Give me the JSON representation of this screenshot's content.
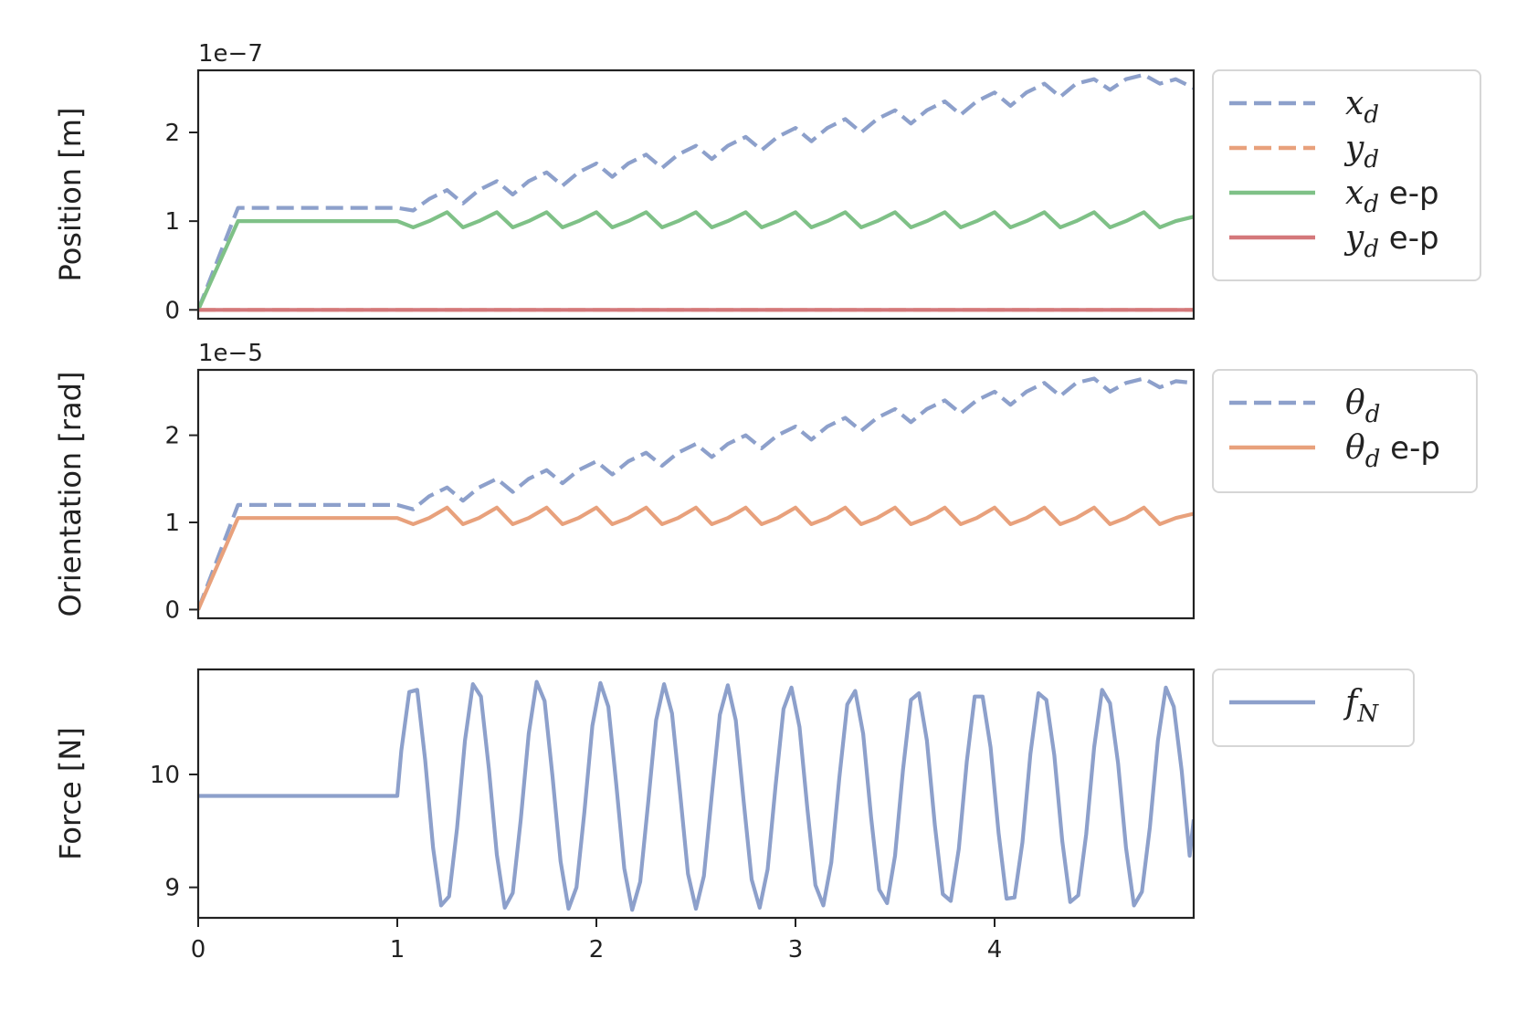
{
  "chart_data": [
    {
      "type": "line",
      "ylabel": "Position [m]",
      "offset_text": "1e−7",
      "scale": 1e-07,
      "xlim": [
        0,
        5
      ],
      "ylim": [
        -0.1,
        2.7
      ],
      "yticks": [
        0,
        1,
        2
      ],
      "ytick_labels": [
        "0",
        "1",
        "2"
      ],
      "legend_position": "outside-right",
      "series": [
        {
          "name": "x_d",
          "style": "dashed",
          "color": "#8da0cb",
          "x": [
            0,
            0.2,
            1.0,
            1.08,
            1.16,
            1.25,
            1.33,
            1.41,
            1.5,
            1.58,
            1.66,
            1.75,
            1.83,
            1.91,
            2.0,
            2.08,
            2.16,
            2.25,
            2.33,
            2.41,
            2.5,
            2.58,
            2.66,
            2.75,
            2.83,
            2.91,
            3.0,
            3.08,
            3.16,
            3.25,
            3.33,
            3.41,
            3.5,
            3.58,
            3.66,
            3.75,
            3.83,
            3.91,
            4.0,
            4.08,
            4.16,
            4.25,
            4.33,
            4.41,
            4.5,
            4.58,
            4.66,
            4.75,
            4.83,
            4.91,
            5.0
          ],
          "y": [
            0,
            1.15,
            1.15,
            1.12,
            1.25,
            1.35,
            1.2,
            1.35,
            1.45,
            1.3,
            1.45,
            1.55,
            1.4,
            1.55,
            1.65,
            1.5,
            1.65,
            1.75,
            1.6,
            1.75,
            1.85,
            1.7,
            1.85,
            1.95,
            1.8,
            1.95,
            2.05,
            1.9,
            2.05,
            2.15,
            2.0,
            2.15,
            2.25,
            2.1,
            2.25,
            2.35,
            2.2,
            2.35,
            2.45,
            2.3,
            2.45,
            2.55,
            2.4,
            2.55,
            2.6,
            2.48,
            2.6,
            2.65,
            2.55,
            2.6,
            2.5
          ]
        },
        {
          "name": "y_d",
          "style": "dashed",
          "color": "#e8a17c",
          "x": [
            0,
            5
          ],
          "y": [
            0,
            0
          ]
        },
        {
          "name": "x_d e-p",
          "style": "solid",
          "color": "#7fc187",
          "x": [
            0,
            0.2,
            1.0,
            1.08,
            1.16,
            1.25,
            1.33,
            1.41,
            1.5,
            1.58,
            1.66,
            1.75,
            1.83,
            1.91,
            2.0,
            2.08,
            2.16,
            2.25,
            2.33,
            2.41,
            2.5,
            2.58,
            2.66,
            2.75,
            2.83,
            2.91,
            3.0,
            3.08,
            3.16,
            3.25,
            3.33,
            3.41,
            3.5,
            3.58,
            3.66,
            3.75,
            3.83,
            3.91,
            4.0,
            4.08,
            4.16,
            4.25,
            4.33,
            4.41,
            4.5,
            4.58,
            4.66,
            4.75,
            4.83,
            4.91,
            5.0
          ],
          "y": [
            0,
            1.0,
            1.0,
            0.93,
            1.0,
            1.1,
            0.93,
            1.0,
            1.1,
            0.93,
            1.0,
            1.1,
            0.93,
            1.0,
            1.1,
            0.93,
            1.0,
            1.1,
            0.93,
            1.0,
            1.1,
            0.93,
            1.0,
            1.1,
            0.93,
            1.0,
            1.1,
            0.93,
            1.0,
            1.1,
            0.93,
            1.0,
            1.1,
            0.93,
            1.0,
            1.1,
            0.93,
            1.0,
            1.1,
            0.93,
            1.0,
            1.1,
            0.93,
            1.0,
            1.1,
            0.93,
            1.0,
            1.1,
            0.93,
            1.0,
            1.05
          ]
        },
        {
          "name": "y_d e-p",
          "style": "solid",
          "color": "#d4787b",
          "x": [
            0,
            5
          ],
          "y": [
            0,
            0
          ]
        }
      ],
      "legend": [
        {
          "series": 0,
          "symbol": "x",
          "suffix": ""
        },
        {
          "series": 1,
          "symbol": "y",
          "suffix": ""
        },
        {
          "series": 2,
          "symbol": "x",
          "suffix": " e-p"
        },
        {
          "series": 3,
          "symbol": "y",
          "suffix": " e-p"
        }
      ]
    },
    {
      "type": "line",
      "ylabel": "Orientation [rad]",
      "offset_text": "1e−5",
      "scale": 1e-05,
      "xlim": [
        0,
        5
      ],
      "ylim": [
        -0.1,
        2.75
      ],
      "yticks": [
        0,
        1,
        2
      ],
      "ytick_labels": [
        "0",
        "1",
        "2"
      ],
      "legend_position": "outside-right",
      "series": [
        {
          "name": "theta_d",
          "style": "dashed",
          "color": "#8da0cb",
          "x": [
            0,
            0.2,
            1.0,
            1.08,
            1.16,
            1.25,
            1.33,
            1.41,
            1.5,
            1.58,
            1.66,
            1.75,
            1.83,
            1.91,
            2.0,
            2.08,
            2.16,
            2.25,
            2.33,
            2.41,
            2.5,
            2.58,
            2.66,
            2.75,
            2.83,
            2.91,
            3.0,
            3.08,
            3.16,
            3.25,
            3.33,
            3.41,
            3.5,
            3.58,
            3.66,
            3.75,
            3.83,
            3.91,
            4.0,
            4.08,
            4.16,
            4.25,
            4.33,
            4.41,
            4.5,
            4.58,
            4.66,
            4.75,
            4.83,
            4.91,
            5.0
          ],
          "y": [
            0,
            1.2,
            1.2,
            1.15,
            1.3,
            1.4,
            1.25,
            1.4,
            1.5,
            1.35,
            1.5,
            1.6,
            1.45,
            1.6,
            1.7,
            1.55,
            1.7,
            1.8,
            1.65,
            1.8,
            1.9,
            1.75,
            1.9,
            2.0,
            1.85,
            2.0,
            2.1,
            1.95,
            2.1,
            2.2,
            2.05,
            2.2,
            2.3,
            2.15,
            2.3,
            2.4,
            2.25,
            2.4,
            2.5,
            2.35,
            2.5,
            2.6,
            2.45,
            2.6,
            2.65,
            2.5,
            2.6,
            2.65,
            2.55,
            2.62,
            2.6
          ]
        },
        {
          "name": "theta_d e-p",
          "style": "solid",
          "color": "#e8a17c",
          "x": [
            0,
            0.2,
            1.0,
            1.08,
            1.16,
            1.25,
            1.33,
            1.41,
            1.5,
            1.58,
            1.66,
            1.75,
            1.83,
            1.91,
            2.0,
            2.08,
            2.16,
            2.25,
            2.33,
            2.41,
            2.5,
            2.58,
            2.66,
            2.75,
            2.83,
            2.91,
            3.0,
            3.08,
            3.16,
            3.25,
            3.33,
            3.41,
            3.5,
            3.58,
            3.66,
            3.75,
            3.83,
            3.91,
            4.0,
            4.08,
            4.16,
            4.25,
            4.33,
            4.41,
            4.5,
            4.58,
            4.66,
            4.75,
            4.83,
            4.91,
            5.0
          ],
          "y": [
            0,
            1.05,
            1.05,
            0.98,
            1.05,
            1.17,
            0.98,
            1.05,
            1.17,
            0.98,
            1.05,
            1.17,
            0.98,
            1.05,
            1.17,
            0.98,
            1.05,
            1.17,
            0.98,
            1.05,
            1.17,
            0.98,
            1.05,
            1.17,
            0.98,
            1.05,
            1.17,
            0.98,
            1.05,
            1.17,
            0.98,
            1.05,
            1.17,
            0.98,
            1.05,
            1.17,
            0.98,
            1.05,
            1.17,
            0.98,
            1.05,
            1.17,
            0.98,
            1.05,
            1.17,
            0.98,
            1.05,
            1.17,
            0.98,
            1.05,
            1.1
          ]
        }
      ],
      "legend": [
        {
          "series": 0,
          "symbol": "θ",
          "suffix": ""
        },
        {
          "series": 1,
          "symbol": "θ",
          "suffix": " e-p"
        }
      ]
    },
    {
      "type": "line",
      "ylabel": "Force [N]",
      "offset_text": "",
      "scale": 1,
      "xlim": [
        0,
        5
      ],
      "ylim": [
        8.73,
        10.93
      ],
      "yticks": [
        9,
        10
      ],
      "ytick_labels": [
        "9",
        "10"
      ],
      "xticks": [
        0,
        1,
        2,
        3,
        4
      ],
      "xtick_labels": [
        "0",
        "1",
        "2",
        "3",
        "4"
      ],
      "legend_position": "outside-right",
      "series": [
        {
          "name": "f_N",
          "style": "solid",
          "color": "#8da0cb",
          "x": [
            0,
            1.0,
            1.02,
            1.06,
            1.1,
            1.14,
            1.18,
            1.22,
            1.26,
            1.3,
            1.34,
            1.38,
            1.42,
            1.46,
            1.5,
            1.54,
            1.58,
            1.62,
            1.66,
            1.7,
            1.74,
            1.78,
            1.82,
            1.86,
            1.9,
            1.94,
            1.98,
            2.02,
            2.06,
            2.1,
            2.14,
            2.18,
            2.22,
            2.26,
            2.3,
            2.34,
            2.38,
            2.42,
            2.46,
            2.5,
            2.54,
            2.58,
            2.62,
            2.66,
            2.7,
            2.74,
            2.78,
            2.82,
            2.86,
            2.9,
            2.94,
            2.98,
            3.02,
            3.06,
            3.1,
            3.14,
            3.18,
            3.22,
            3.26,
            3.3,
            3.34,
            3.38,
            3.42,
            3.46,
            3.5,
            3.54,
            3.58,
            3.62,
            3.66,
            3.7,
            3.74,
            3.78,
            3.82,
            3.86,
            3.9,
            3.94,
            3.98,
            4.02,
            4.06,
            4.1,
            4.14,
            4.18,
            4.22,
            4.26,
            4.3,
            4.34,
            4.38,
            4.42,
            4.46,
            4.5,
            4.54,
            4.58,
            4.62,
            4.66,
            4.7,
            4.74,
            4.78,
            4.82,
            4.86,
            4.9,
            4.94,
            4.98,
            5.0
          ],
          "y": [
            9.81,
            9.81,
            10.21,
            10.73,
            10.75,
            10.13,
            9.35,
            8.84,
            8.92,
            9.52,
            10.3,
            10.8,
            10.69,
            10.05,
            9.29,
            8.82,
            8.95,
            9.6,
            10.36,
            10.82,
            10.65,
            9.98,
            9.23,
            8.81,
            9.0,
            9.67,
            10.43,
            10.81,
            10.6,
            9.91,
            9.17,
            8.8,
            9.05,
            9.75,
            10.48,
            10.8,
            10.54,
            9.84,
            9.12,
            8.81,
            9.1,
            9.82,
            10.53,
            10.79,
            10.48,
            9.76,
            9.07,
            8.82,
            9.16,
            9.9,
            10.58,
            10.77,
            10.42,
            9.69,
            9.02,
            8.84,
            9.22,
            9.97,
            10.62,
            10.74,
            10.36,
            9.62,
            8.98,
            8.86,
            9.28,
            10.04,
            10.66,
            10.72,
            10.3,
            9.55,
            8.94,
            8.88,
            9.34,
            10.11,
            10.69,
            10.69,
            10.24,
            9.48,
            8.9,
            8.91,
            9.4,
            10.18,
            10.72,
            10.66,
            10.17,
            9.41,
            8.87,
            8.93,
            9.47,
            10.24,
            10.75,
            10.63,
            10.1,
            9.35,
            8.84,
            8.96,
            9.53,
            10.3,
            10.77,
            10.6,
            10.03,
            9.28,
            9.6
          ]
        }
      ],
      "legend": [
        {
          "series": 0,
          "symbol": "f",
          "suffix": "",
          "subscript": "N"
        }
      ]
    }
  ]
}
